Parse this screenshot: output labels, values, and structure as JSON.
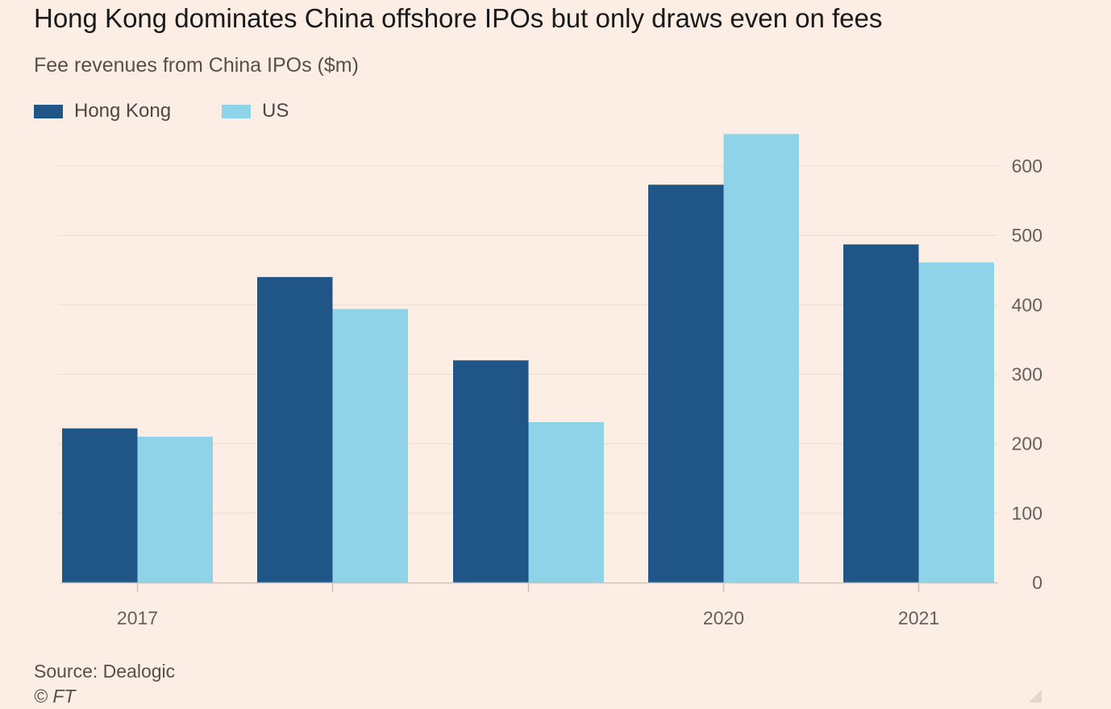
{
  "title": "Hong Kong dominates China offshore IPOs but only draws even on fees",
  "subtitle": "Fee revenues from China IPOs ($m)",
  "source": "Source: Dealogic",
  "copyright": "© FT",
  "colors": {
    "background": "#fcede5",
    "hong_kong": "#1f5587",
    "us": "#8fd3e8",
    "gridline": "#eaddd5",
    "axis": "#cfc3bb"
  },
  "chart_data": {
    "type": "bar",
    "categories": [
      "2017",
      "",
      "",
      "2020",
      "2021"
    ],
    "series": [
      {
        "name": "Hong Kong",
        "values": [
          222,
          440,
          320,
          573,
          487
        ]
      },
      {
        "name": "US",
        "values": [
          210,
          394,
          231,
          646,
          461
        ]
      }
    ],
    "y_ticks": [
      0,
      100,
      200,
      300,
      400,
      500,
      600
    ],
    "ylim": [
      0,
      680
    ],
    "y_axis_position": "right",
    "grid": true,
    "legend_position": "top-left"
  }
}
